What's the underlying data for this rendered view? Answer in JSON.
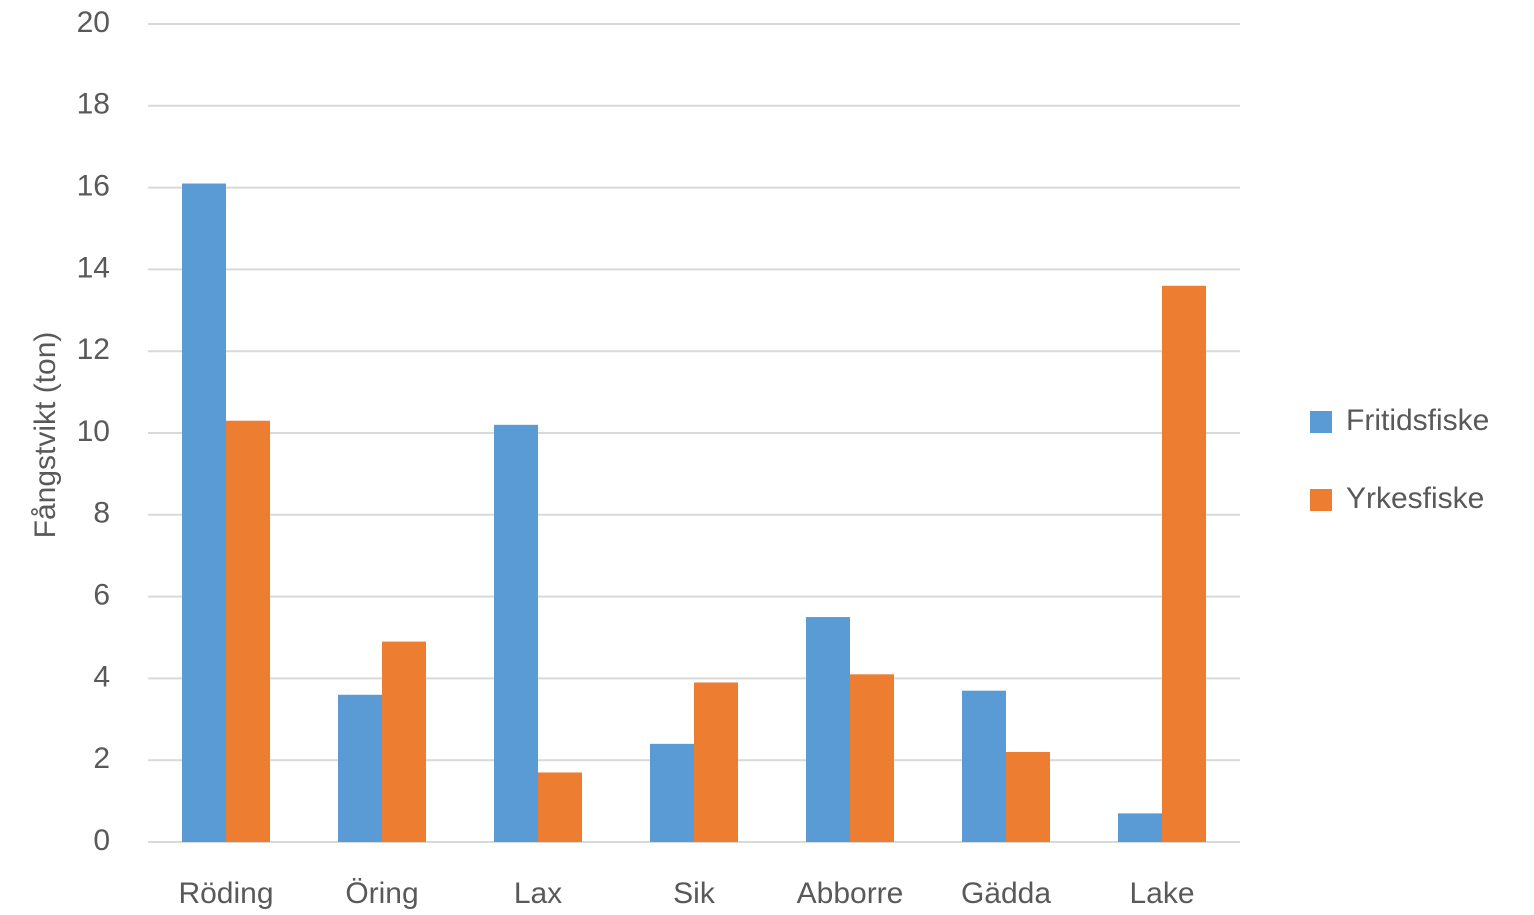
{
  "chart_data": {
    "type": "bar",
    "title": "",
    "xlabel": "",
    "ylabel": "Fångstvikt (ton)",
    "ylim": [
      0,
      20
    ],
    "yticks": [
      0,
      2,
      4,
      6,
      8,
      10,
      12,
      14,
      16,
      18,
      20
    ],
    "grid": true,
    "legend_position": "right",
    "categories": [
      "Röding",
      "Öring",
      "Lax",
      "Sik",
      "Abborre",
      "Gädda",
      "Lake"
    ],
    "series": [
      {
        "name": "Fritidsfiske",
        "color": "#5B9BD5",
        "values": [
          16.1,
          3.6,
          10.2,
          2.4,
          5.5,
          3.7,
          0.7
        ]
      },
      {
        "name": "Yrkesfiske",
        "color": "#ED7D31",
        "values": [
          10.3,
          4.9,
          1.7,
          3.9,
          4.1,
          2.2,
          13.6
        ]
      }
    ]
  }
}
